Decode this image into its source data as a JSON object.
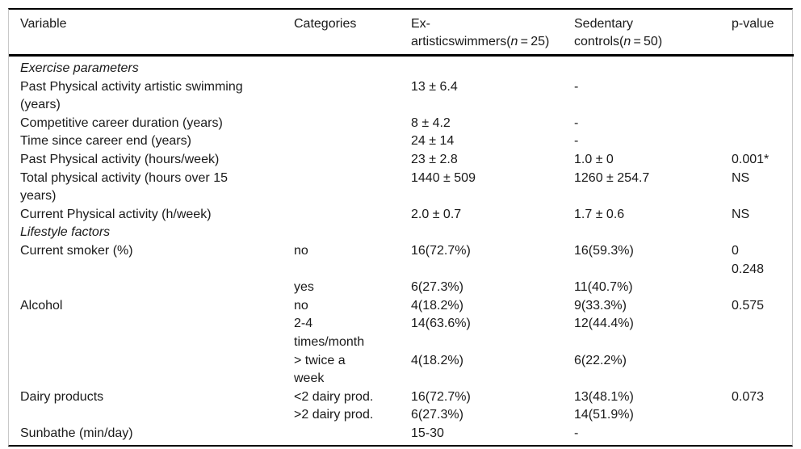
{
  "table": {
    "columns": [
      {
        "id": "variable",
        "lines": [
          "Variable"
        ]
      },
      {
        "id": "categories",
        "lines": [
          "Categories"
        ]
      },
      {
        "id": "ex-swimmers",
        "lines": [
          "Ex-",
          "artisticswimmers(n = 25)"
        ]
      },
      {
        "id": "sedentary",
        "lines": [
          "Sedentary",
          "controls(n = 50)"
        ]
      },
      {
        "id": "p-value",
        "lines": [
          "p-value"
        ]
      }
    ],
    "rows": [
      {
        "type": "section",
        "variable": "Exercise parameters",
        "categories": "",
        "ex": "",
        "sed": "",
        "p": ""
      },
      {
        "type": "data",
        "variable": "Past Physical activity artistic swimming (years)",
        "categories": "",
        "ex": "13 ± 6.4",
        "sed": "-",
        "p": ""
      },
      {
        "type": "data",
        "variable": "Competitive career duration (years)",
        "categories": "",
        "ex": "8 ± 4.2",
        "sed": "-",
        "p": ""
      },
      {
        "type": "data",
        "variable": "Time since career end (years)",
        "categories": "",
        "ex": "24 ± 14",
        "sed": "-",
        "p": ""
      },
      {
        "type": "data",
        "variable": "Past Physical activity (hours/week)",
        "categories": "",
        "ex": "23 ± 2.8",
        "sed": "1.0 ± 0",
        "p": "0.001*"
      },
      {
        "type": "data",
        "variable": "Total physical activity (hours over 15 years)",
        "categories": "",
        "ex": "1440 ± 509",
        "sed": "1260 ± 254.7",
        "p": "NS"
      },
      {
        "type": "data",
        "variable": "Current Physical activity (h/week)",
        "categories": "",
        "ex": "2.0 ± 0.7",
        "sed": "1.7 ± 0.6",
        "p": "NS"
      },
      {
        "type": "section",
        "variable": "Lifestyle factors",
        "categories": "",
        "ex": "",
        "sed": "",
        "p": ""
      },
      {
        "type": "data",
        "variable": "Current smoker (%)",
        "categories": "no",
        "ex": "16(72.7%)",
        "sed": "16(59.3%)",
        "p": "0\n0.248"
      },
      {
        "type": "data",
        "variable": "",
        "categories": "yes",
        "ex": "6(27.3%)",
        "sed": "11(40.7%)",
        "p": ""
      },
      {
        "type": "data",
        "variable": "Alcohol",
        "categories": "no",
        "ex": "4(18.2%)",
        "sed": "9(33.3%)",
        "p": "0.575"
      },
      {
        "type": "data",
        "variable": "",
        "categories": "2-4 times/month",
        "ex": "14(63.6%)",
        "sed": "12(44.4%)",
        "p": ""
      },
      {
        "type": "data",
        "variable": "",
        "categories": "> twice a week",
        "ex": "4(18.2%)",
        "sed": "6(22.2%)",
        "p": ""
      },
      {
        "type": "data",
        "variable": "Dairy products",
        "categories": "<2 dairy prod.",
        "ex": "16(72.7%)",
        "sed": "13(48.1%)",
        "p": "0.073"
      },
      {
        "type": "data",
        "variable": "",
        "categories": ">2 dairy prod.",
        "ex": "6(27.3%)",
        "sed": "14(51.9%)",
        "p": ""
      },
      {
        "type": "data",
        "variable": "Sunbathe (min/day)",
        "categories": "",
        "ex": "15-30",
        "sed": "-",
        "p": ""
      }
    ]
  }
}
